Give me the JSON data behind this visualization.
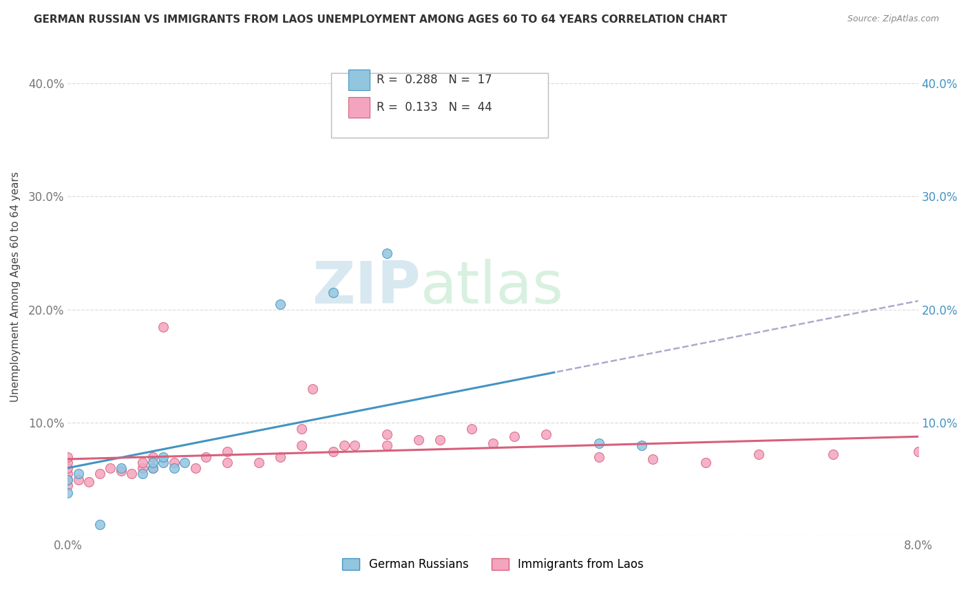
{
  "title": "GERMAN RUSSIAN VS IMMIGRANTS FROM LAOS UNEMPLOYMENT AMONG AGES 60 TO 64 YEARS CORRELATION CHART",
  "source": "Source: ZipAtlas.com",
  "ylabel": "Unemployment Among Ages 60 to 64 years",
  "xmin": 0.0,
  "xmax": 0.08,
  "ymin": 0.0,
  "ymax": 0.44,
  "yticks": [
    0.0,
    0.1,
    0.2,
    0.3,
    0.4
  ],
  "color_blue": "#92c5de",
  "color_blue_edge": "#4393c3",
  "color_pink": "#f4a4bf",
  "color_pink_edge": "#d6607a",
  "color_line_blue": "#4393c3",
  "color_line_pink": "#d6607a",
  "color_trend_gray": "#aaaacc",
  "legend_r1": "0.288",
  "legend_n1": "17",
  "legend_r2": "0.133",
  "legend_n2": "44",
  "watermark_zip": "ZIP",
  "watermark_atlas": "atlas",
  "background_color": "#ffffff",
  "grid_color": "#dddddd",
  "german_russian_x": [
    0.0,
    0.0,
    0.001,
    0.003,
    0.005,
    0.007,
    0.008,
    0.008,
    0.009,
    0.009,
    0.01,
    0.011,
    0.02,
    0.025,
    0.03,
    0.05,
    0.054
  ],
  "german_russian_y": [
    0.05,
    0.038,
    0.055,
    0.01,
    0.06,
    0.055,
    0.06,
    0.065,
    0.065,
    0.07,
    0.06,
    0.065,
    0.205,
    0.215,
    0.25,
    0.082,
    0.08
  ],
  "laos_x": [
    0.0,
    0.0,
    0.0,
    0.0,
    0.0,
    0.0,
    0.001,
    0.002,
    0.003,
    0.004,
    0.005,
    0.006,
    0.007,
    0.007,
    0.008,
    0.008,
    0.009,
    0.01,
    0.012,
    0.013,
    0.015,
    0.015,
    0.018,
    0.02,
    0.022,
    0.022,
    0.023,
    0.025,
    0.026,
    0.027,
    0.03,
    0.03,
    0.033,
    0.035,
    0.038,
    0.04,
    0.042,
    0.045,
    0.05,
    0.055,
    0.06,
    0.065,
    0.072,
    0.08
  ],
  "laos_y": [
    0.045,
    0.05,
    0.055,
    0.06,
    0.065,
    0.07,
    0.05,
    0.048,
    0.055,
    0.06,
    0.058,
    0.055,
    0.06,
    0.065,
    0.06,
    0.07,
    0.185,
    0.065,
    0.06,
    0.07,
    0.065,
    0.075,
    0.065,
    0.07,
    0.08,
    0.095,
    0.13,
    0.075,
    0.08,
    0.08,
    0.08,
    0.09,
    0.085,
    0.085,
    0.095,
    0.082,
    0.088,
    0.09,
    0.07,
    0.068,
    0.065,
    0.072,
    0.072,
    0.075
  ]
}
